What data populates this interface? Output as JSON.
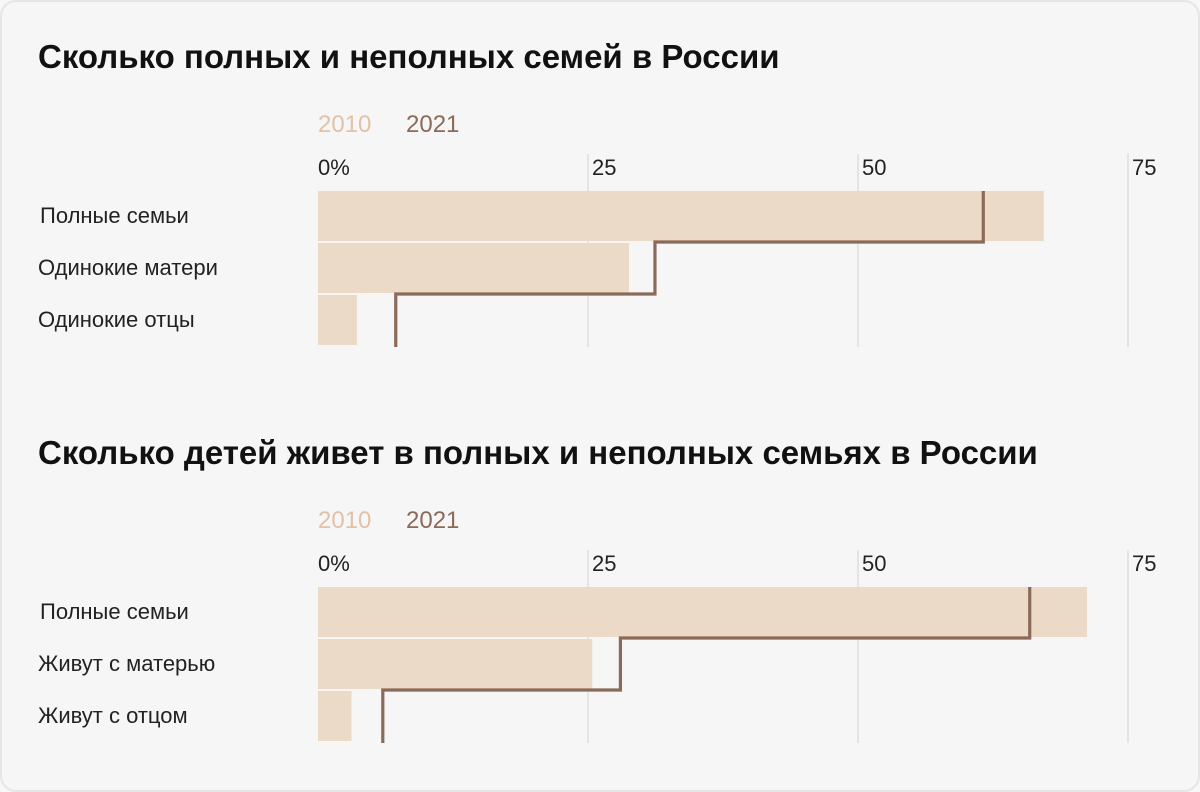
{
  "chart_data": [
    {
      "type": "bar",
      "title": "Сколько полных и неполных семей в России",
      "legend": {
        "placement": "top-left",
        "entries": [
          {
            "name": "2010",
            "color": "#e2c2a6"
          },
          {
            "name": "2021",
            "color": "#8a6a58"
          }
        ]
      },
      "xlim": [
        0,
        75
      ],
      "ticks": [
        "0%",
        "25",
        "50",
        "75"
      ],
      "tick_values": [
        0,
        25,
        50,
        75
      ],
      "grid": true,
      "categories": [
        "Полные семьи",
        "Одинокие матери",
        "Одинокие отцы"
      ],
      "series": [
        {
          "name": "2010",
          "color": "#ecdac9",
          "values": [
            67.2,
            28.8,
            3.6
          ]
        },
        {
          "name": "2021",
          "color": "#8a6a58",
          "style": "step",
          "values": [
            61.6,
            31.2,
            7.2
          ]
        }
      ]
    },
    {
      "type": "bar",
      "title": "Сколько детей живет в полных и неполных семьях в России",
      "legend": {
        "placement": "top-left",
        "entries": [
          {
            "name": "2010",
            "color": "#e2c2a6"
          },
          {
            "name": "2021",
            "color": "#8a6a58"
          }
        ]
      },
      "xlim": [
        0,
        75
      ],
      "ticks": [
        "0%",
        "25",
        "50",
        "75"
      ],
      "tick_values": [
        0,
        25,
        50,
        75
      ],
      "grid": true,
      "categories": [
        "Полные семьи",
        "Живут с матерью",
        "Живут с отцом"
      ],
      "series": [
        {
          "name": "2010",
          "color": "#ecdac9",
          "values": [
            71.2,
            25.4,
            3.1
          ]
        },
        {
          "name": "2021",
          "color": "#8a6a58",
          "style": "step",
          "values": [
            65.9,
            28.0,
            6.0
          ]
        }
      ]
    }
  ],
  "colors": {
    "background": "#f6f6f6",
    "grid": "#d9d9d9",
    "text": "#222222"
  }
}
